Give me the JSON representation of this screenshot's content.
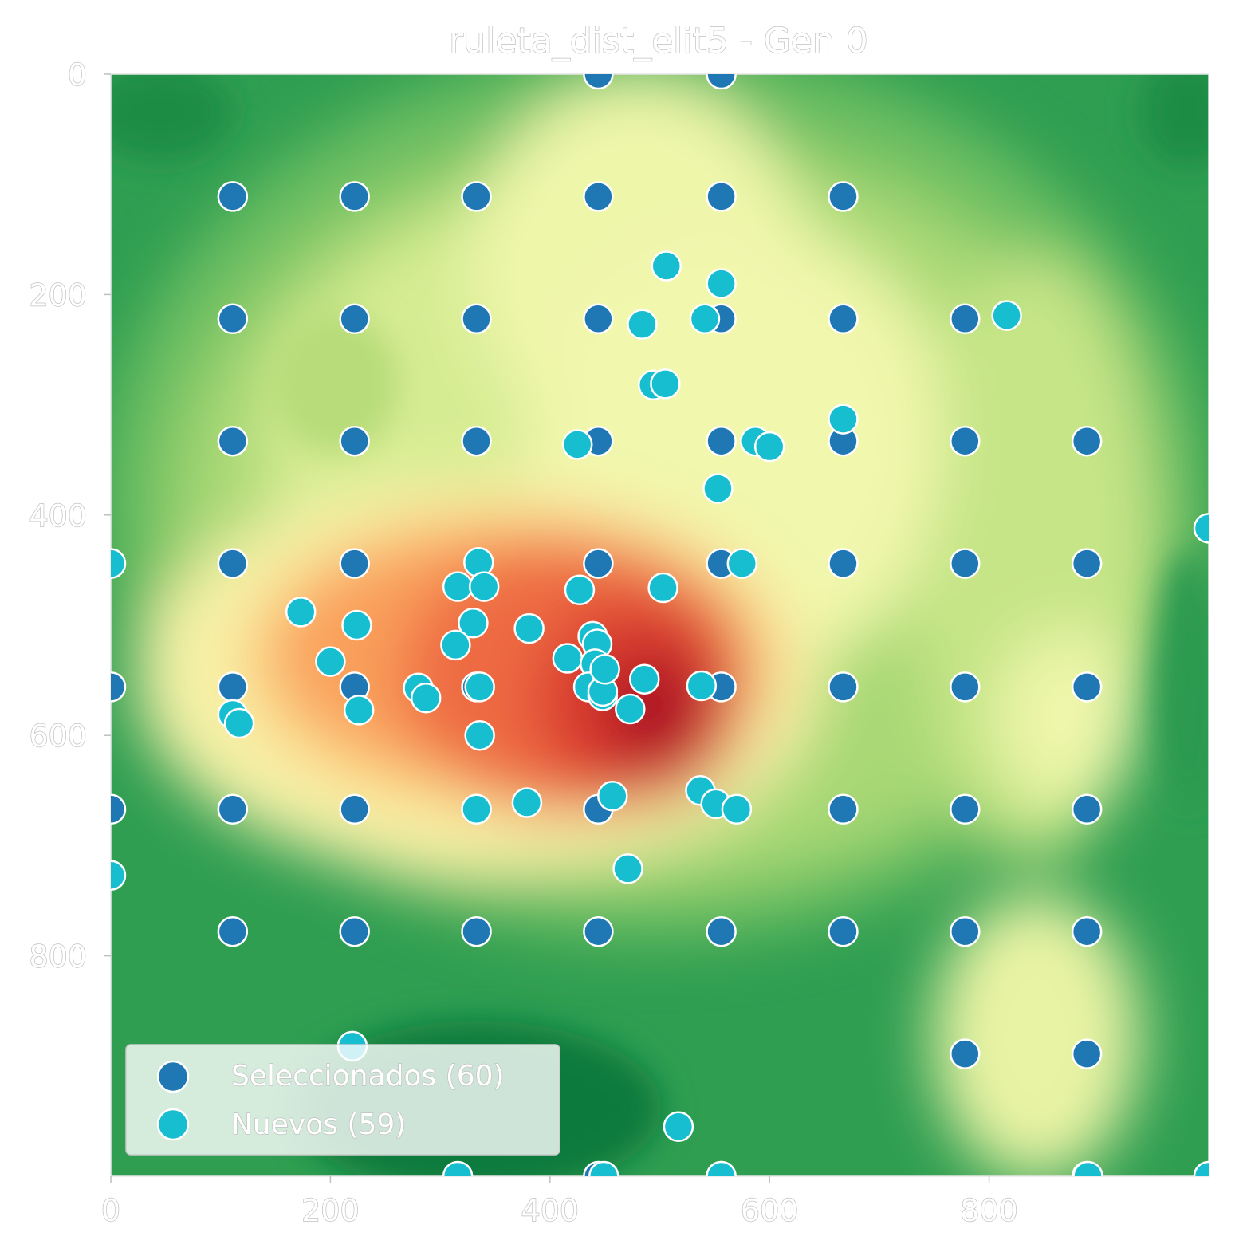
{
  "chart_data": {
    "type": "scatter",
    "title": "ruleta_dist_elit5 - Gen 0",
    "xlabel": "",
    "ylabel": "",
    "xlim": [
      0,
      1000
    ],
    "ylim": [
      1000,
      0
    ],
    "y_inverted": true,
    "x_ticks": [
      0,
      200,
      400,
      600,
      800
    ],
    "y_ticks": [
      0,
      200,
      400,
      600,
      800
    ],
    "grid": false,
    "background": "heatmap (RdYlGn_r style: red = high, green = low)",
    "legend_position": "lower-left",
    "series": [
      {
        "name": "Seleccionados (60)",
        "color": "#1f77b4",
        "points": [
          [
            444,
            0
          ],
          [
            556,
            0
          ],
          [
            111,
            111
          ],
          [
            222,
            111
          ],
          [
            333,
            111
          ],
          [
            444,
            111
          ],
          [
            556,
            111
          ],
          [
            667,
            111
          ],
          [
            111,
            222
          ],
          [
            222,
            222
          ],
          [
            333,
            222
          ],
          [
            444,
            222
          ],
          [
            556,
            222
          ],
          [
            667,
            222
          ],
          [
            778,
            222
          ],
          [
            111,
            333
          ],
          [
            222,
            333
          ],
          [
            333,
            333
          ],
          [
            444,
            333
          ],
          [
            556,
            333
          ],
          [
            667,
            333
          ],
          [
            778,
            333
          ],
          [
            889,
            333
          ],
          [
            111,
            444
          ],
          [
            222,
            444
          ],
          [
            444,
            444
          ],
          [
            556,
            444
          ],
          [
            667,
            444
          ],
          [
            778,
            444
          ],
          [
            889,
            444
          ],
          [
            0,
            556
          ],
          [
            111,
            556
          ],
          [
            222,
            556
          ],
          [
            333,
            556
          ],
          [
            556,
            556
          ],
          [
            667,
            556
          ],
          [
            778,
            556
          ],
          [
            889,
            556
          ],
          [
            0,
            667
          ],
          [
            111,
            667
          ],
          [
            222,
            667
          ],
          [
            333,
            667
          ],
          [
            444,
            667
          ],
          [
            667,
            667
          ],
          [
            778,
            667
          ],
          [
            889,
            667
          ],
          [
            111,
            778
          ],
          [
            222,
            778
          ],
          [
            333,
            778
          ],
          [
            444,
            778
          ],
          [
            556,
            778
          ],
          [
            667,
            778
          ],
          [
            778,
            778
          ],
          [
            889,
            778
          ],
          [
            778,
            889
          ],
          [
            889,
            889
          ],
          [
            444,
            1000
          ],
          [
            556,
            1000
          ],
          [
            889,
            1000
          ],
          [
            1000,
            1000
          ]
        ]
      },
      {
        "name": "Nuevos (59)",
        "color": "#17becf",
        "points": [
          [
            506,
            174
          ],
          [
            556,
            190
          ],
          [
            484,
            227
          ],
          [
            541,
            222
          ],
          [
            816,
            219
          ],
          [
            494,
            282
          ],
          [
            505,
            281
          ],
          [
            667,
            313
          ],
          [
            425,
            336
          ],
          [
            587,
            333
          ],
          [
            600,
            338
          ],
          [
            553,
            376
          ],
          [
            1000,
            412
          ],
          [
            0,
            444
          ],
          [
            335,
            443
          ],
          [
            575,
            444
          ],
          [
            316,
            465
          ],
          [
            340,
            465
          ],
          [
            427,
            468
          ],
          [
            503,
            466
          ],
          [
            173,
            488
          ],
          [
            224,
            500
          ],
          [
            330,
            498
          ],
          [
            381,
            503
          ],
          [
            314,
            518
          ],
          [
            439,
            510
          ],
          [
            443,
            517
          ],
          [
            200,
            533
          ],
          [
            416,
            530
          ],
          [
            441,
            535
          ],
          [
            280,
            557
          ],
          [
            287,
            566
          ],
          [
            336,
            556
          ],
          [
            486,
            549
          ],
          [
            538,
            555
          ],
          [
            435,
            556
          ],
          [
            448,
            564
          ],
          [
            473,
            576
          ],
          [
            111,
            581
          ],
          [
            117,
            589
          ],
          [
            226,
            577
          ],
          [
            336,
            600
          ],
          [
            379,
            661
          ],
          [
            457,
            655
          ],
          [
            537,
            650
          ],
          [
            551,
            662
          ],
          [
            570,
            667
          ],
          [
            471,
            721
          ],
          [
            0,
            727
          ],
          [
            220,
            882
          ],
          [
            517,
            955
          ],
          [
            316,
            1000
          ],
          [
            449,
            1000
          ],
          [
            556,
            1000
          ],
          [
            890,
            1000
          ],
          [
            1000,
            1000
          ],
          [
            448,
            560
          ],
          [
            333,
            667
          ],
          [
            450,
            540
          ]
        ]
      }
    ],
    "legend": [
      {
        "label": "Seleccionados (60)",
        "color": "#1f77b4"
      },
      {
        "label": "Nuevos (59)",
        "color": "#17becf"
      }
    ]
  }
}
